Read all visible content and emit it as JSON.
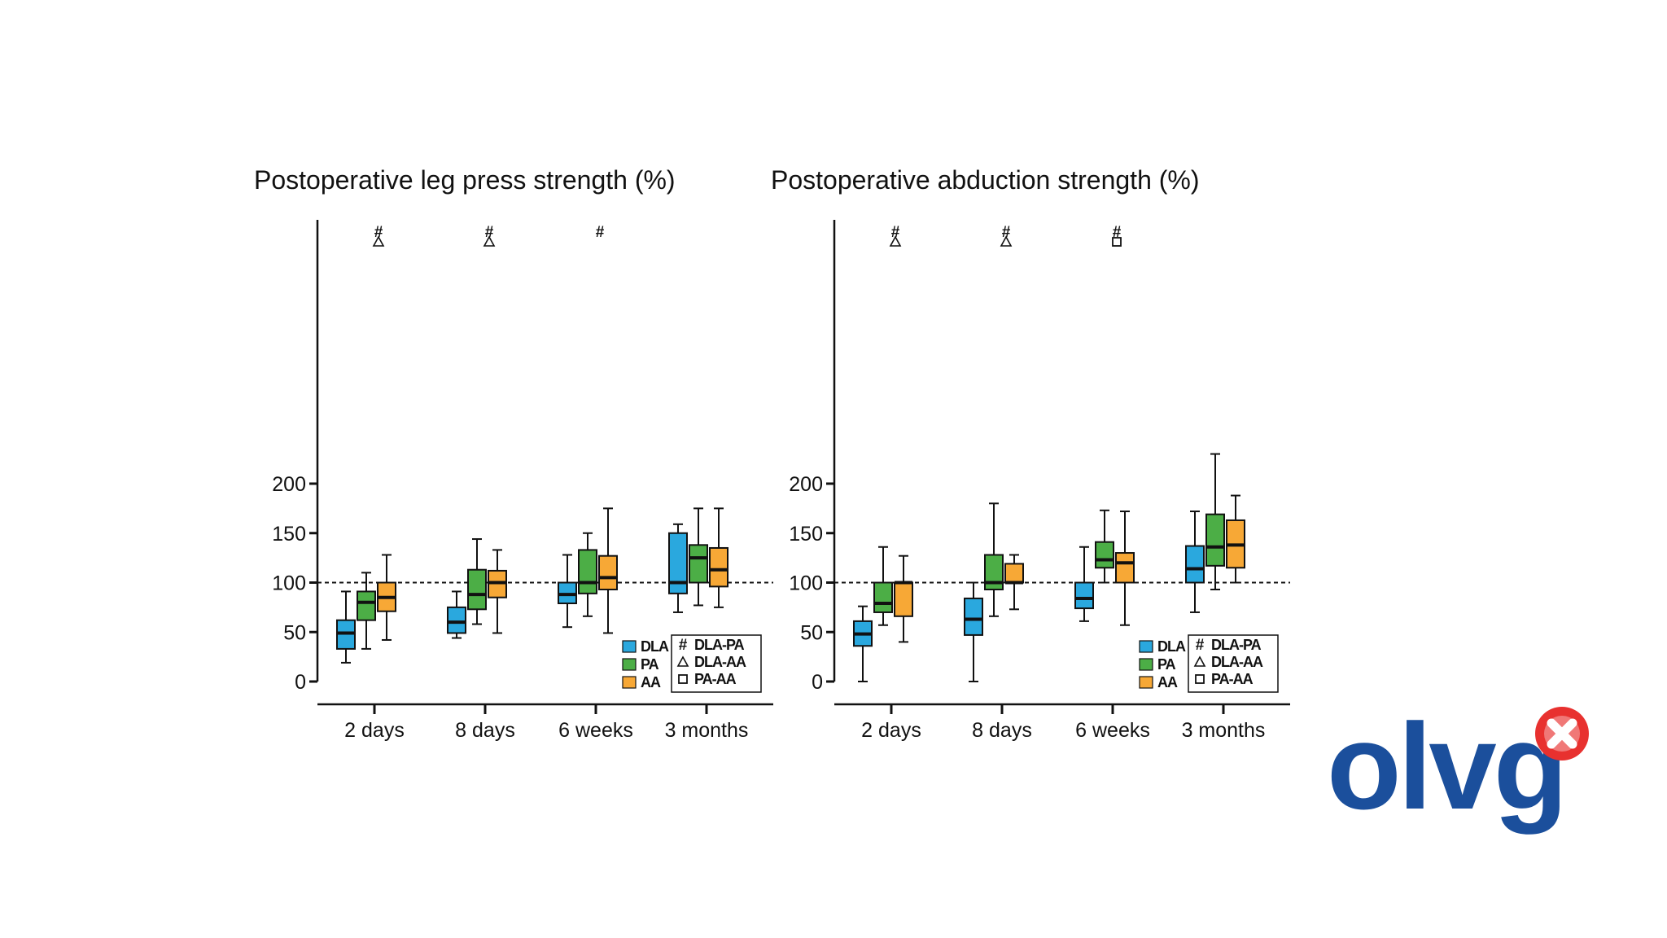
{
  "colors": {
    "DLA": "#2aa8de",
    "PA": "#4cae46",
    "AA": "#f7a836",
    "logo_blue": "#1b4f9c",
    "logo_red": "#e8312f"
  },
  "logo": {
    "text": "olvg"
  },
  "chart_data": [
    {
      "type": "box",
      "title": "Postoperative leg press strength (%)",
      "xlabel": "",
      "ylabel": "",
      "ylim": [
        0,
        230
      ],
      "yticks": [
        0,
        50,
        100,
        150,
        200
      ],
      "reference_line": 100,
      "categories": [
        "2 days",
        "8 days",
        "6 weeks",
        "3 months"
      ],
      "series": [
        {
          "name": "DLA",
          "color_key": "DLA",
          "boxes": [
            {
              "min": 19,
              "q1": 33,
              "median": 49,
              "q3": 62,
              "max": 91
            },
            {
              "min": 44,
              "q1": 49,
              "median": 60,
              "q3": 75,
              "max": 91
            },
            {
              "min": 55,
              "q1": 79,
              "median": 88,
              "q3": 100,
              "max": 128
            },
            {
              "min": 70,
              "q1": 89,
              "median": 100,
              "q3": 150,
              "max": 159
            }
          ]
        },
        {
          "name": "PA",
          "color_key": "PA",
          "boxes": [
            {
              "min": 33,
              "q1": 62,
              "median": 80,
              "q3": 91,
              "max": 110
            },
            {
              "min": 58,
              "q1": 73,
              "median": 88,
              "q3": 113,
              "max": 144
            },
            {
              "min": 66,
              "q1": 89,
              "median": 100,
              "q3": 133,
              "max": 150
            },
            {
              "min": 77,
              "q1": 100,
              "median": 125,
              "q3": 138,
              "max": 175
            }
          ]
        },
        {
          "name": "AA",
          "color_key": "AA",
          "boxes": [
            {
              "min": 42,
              "q1": 71,
              "median": 85,
              "q3": 100,
              "max": 128
            },
            {
              "min": 49,
              "q1": 85,
              "median": 100,
              "q3": 112,
              "max": 133
            },
            {
              "min": 49,
              "q1": 93,
              "median": 105,
              "q3": 127,
              "max": 175
            },
            {
              "min": 75,
              "q1": 96,
              "median": 113,
              "q3": 135,
              "max": 175
            }
          ]
        }
      ],
      "significance": [
        {
          "category": "2 days",
          "symbols": [
            "#",
            "△"
          ]
        },
        {
          "category": "8 days",
          "symbols": [
            "#",
            "△"
          ]
        },
        {
          "category": "6 weeks",
          "symbols": [
            "#"
          ]
        }
      ],
      "legend": {
        "series": [
          "DLA",
          "PA",
          "AA"
        ],
        "symbols": [
          {
            "symbol": "#",
            "label": "DLA-PA"
          },
          {
            "symbol": "△",
            "label": "DLA-AA"
          },
          {
            "symbol": "□",
            "label": "PA-AA"
          }
        ],
        "placement": "bottom-right"
      },
      "grid": false
    },
    {
      "type": "box",
      "title": "Postoperative abduction strength (%)",
      "xlabel": "",
      "ylabel": "",
      "ylim": [
        0,
        230
      ],
      "yticks": [
        0,
        50,
        100,
        150,
        200
      ],
      "reference_line": 100,
      "categories": [
        "2 days",
        "8 days",
        "6 weeks",
        "3 months"
      ],
      "series": [
        {
          "name": "DLA",
          "color_key": "DLA",
          "boxes": [
            {
              "min": 0,
              "q1": 36,
              "median": 48,
              "q3": 61,
              "max": 76
            },
            {
              "min": 0,
              "q1": 47,
              "median": 63,
              "q3": 84,
              "max": 100
            },
            {
              "min": 61,
              "q1": 74,
              "median": 84,
              "q3": 100,
              "max": 136
            },
            {
              "min": 70,
              "q1": 100,
              "median": 114,
              "q3": 137,
              "max": 172
            }
          ]
        },
        {
          "name": "PA",
          "color_key": "PA",
          "boxes": [
            {
              "min": 57,
              "q1": 70,
              "median": 79,
              "q3": 100,
              "max": 136
            },
            {
              "min": 66,
              "q1": 93,
              "median": 100,
              "q3": 128,
              "max": 180
            },
            {
              "min": 100,
              "q1": 115,
              "median": 123,
              "q3": 141,
              "max": 173
            },
            {
              "min": 93,
              "q1": 117,
              "median": 136,
              "q3": 169,
              "max": 230
            }
          ]
        },
        {
          "name": "AA",
          "color_key": "AA",
          "boxes": [
            {
              "min": 40,
              "q1": 66,
              "median": 100,
              "q3": 100,
              "max": 127
            },
            {
              "min": 73,
              "q1": 100,
              "median": 100,
              "q3": 119,
              "max": 128
            },
            {
              "min": 57,
              "q1": 100,
              "median": 120,
              "q3": 130,
              "max": 172
            },
            {
              "min": 100,
              "q1": 115,
              "median": 138,
              "q3": 163,
              "max": 188
            }
          ]
        }
      ],
      "significance": [
        {
          "category": "2 days",
          "symbols": [
            "#",
            "△"
          ]
        },
        {
          "category": "8 days",
          "symbols": [
            "#",
            "△"
          ]
        },
        {
          "category": "6 weeks",
          "symbols": [
            "#",
            "□"
          ]
        }
      ],
      "legend": {
        "series": [
          "DLA",
          "PA",
          "AA"
        ],
        "symbols": [
          {
            "symbol": "#",
            "label": "DLA-PA"
          },
          {
            "symbol": "△",
            "label": "DLA-AA"
          },
          {
            "symbol": "□",
            "label": "PA-AA"
          }
        ],
        "placement": "bottom-right"
      },
      "grid": false
    }
  ]
}
